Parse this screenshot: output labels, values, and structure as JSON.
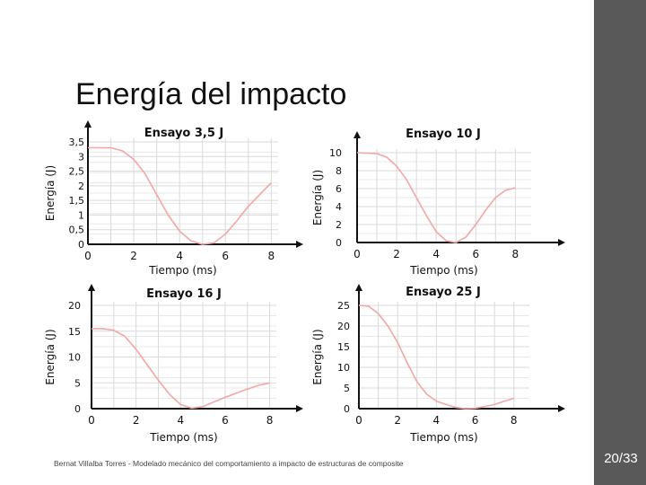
{
  "slide": {
    "title": "Energía del impacto",
    "footer": "Bernat Villalba Torres - Modelado mecánico del comportamiento a impacto de estructuras de composite",
    "page_number": "20/33"
  },
  "colors": {
    "sidebar": "#595959",
    "curve": "#f2a6a6",
    "grid": "#d9d9d9"
  },
  "chart_data": [
    {
      "type": "line",
      "title": "Ensayo 3,5 J",
      "xlabel": "Tiempo (ms)",
      "ylabel": "Energía (J)",
      "xlim": [
        0,
        8.3
      ],
      "ylim": [
        0,
        3.5
      ],
      "x_ticks": [
        "0",
        "2",
        "4",
        "6",
        "8"
      ],
      "y_ticks": [
        "0",
        "0,5",
        "1",
        "1,5",
        "2",
        "2,5",
        "3",
        "3,5"
      ],
      "series": [
        {
          "name": "Energía",
          "x": [
            0,
            1,
            1.5,
            2,
            2.5,
            3,
            3.5,
            4,
            4.5,
            5,
            5.5,
            6,
            6.5,
            7,
            7.5,
            8
          ],
          "y": [
            3.3,
            3.3,
            3.2,
            2.9,
            2.4,
            1.7,
            1.0,
            0.45,
            0.12,
            0.0,
            0.05,
            0.35,
            0.8,
            1.3,
            1.7,
            2.1
          ]
        }
      ]
    },
    {
      "type": "line",
      "title": "Ensayo 10 J",
      "xlabel": "Tiempo (ms)",
      "ylabel": "Energía (J)",
      "xlim": [
        0,
        8.8
      ],
      "ylim": [
        0,
        10
      ],
      "x_ticks": [
        "0",
        "2",
        "4",
        "6",
        "8"
      ],
      "y_ticks": [
        "0",
        "2",
        "4",
        "6",
        "8",
        "10"
      ],
      "series": [
        {
          "name": "Energía",
          "x": [
            0,
            1,
            1.5,
            2,
            2.5,
            3,
            3.5,
            4,
            4.5,
            5,
            5.5,
            6,
            6.5,
            7,
            7.5,
            8
          ],
          "y": [
            10,
            9.9,
            9.5,
            8.5,
            7.0,
            5.0,
            3.0,
            1.2,
            0.2,
            0.0,
            0.6,
            2.0,
            3.6,
            5.0,
            5.8,
            6.1
          ]
        }
      ]
    },
    {
      "type": "line",
      "title": "Ensayo 16 J",
      "xlabel": "Tiempo (ms)",
      "ylabel": "Energía (J)",
      "xlim": [
        0,
        8.3
      ],
      "ylim": [
        0,
        20
      ],
      "x_ticks": [
        "0",
        "2",
        "4",
        "6",
        "8"
      ],
      "y_ticks": [
        "0",
        "5",
        "10",
        "15",
        "20"
      ],
      "series": [
        {
          "name": "Energía",
          "x": [
            0,
            0.5,
            1,
            1.5,
            2,
            2.5,
            3,
            3.5,
            4,
            4.5,
            5,
            5.5,
            6,
            6.5,
            7,
            7.5,
            8
          ],
          "y": [
            15.5,
            15.5,
            15.2,
            14,
            11.5,
            8.5,
            5.5,
            2.8,
            0.8,
            0.1,
            0.4,
            1.3,
            2.2,
            3.0,
            3.8,
            4.5,
            5.0
          ]
        }
      ]
    },
    {
      "type": "line",
      "title": "Ensayo 25 J",
      "xlabel": "Tiempo (ms)",
      "ylabel": "Energía (J)",
      "xlim": [
        0,
        8.8
      ],
      "ylim": [
        0,
        25
      ],
      "x_ticks": [
        "0",
        "2",
        "4",
        "6",
        "8"
      ],
      "y_ticks": [
        "0",
        "5",
        "10",
        "15",
        "20",
        "25"
      ],
      "series": [
        {
          "name": "Energía",
          "x": [
            0,
            0.5,
            1,
            1.5,
            2,
            2.5,
            3,
            3.5,
            4,
            4.5,
            5,
            5.5,
            6,
            6.5,
            7,
            7.5,
            8
          ],
          "y": [
            25,
            24.8,
            23,
            20,
            16,
            11,
            6.5,
            3.5,
            1.8,
            1.0,
            0.3,
            0.0,
            0.1,
            0.5,
            1.0,
            1.8,
            2.5
          ]
        }
      ]
    }
  ]
}
